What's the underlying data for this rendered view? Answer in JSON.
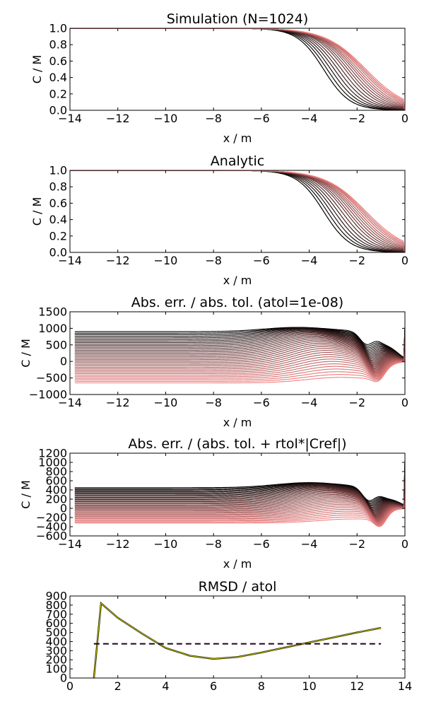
{
  "chart_data": [
    {
      "type": "line",
      "title": "Simulation (N=1024)",
      "xlabel": "x / m",
      "ylabel": "C / M",
      "xlim": [
        -14,
        0
      ],
      "ylim": [
        0,
        1
      ],
      "xticks": [
        -14,
        -12,
        -10,
        -8,
        -6,
        -4,
        -2,
        0
      ],
      "xtick_labels": [
        "−14",
        "−12",
        "−10",
        "−8",
        "−6",
        "−4",
        "−2",
        "0"
      ],
      "yticks": [
        0,
        0.2,
        0.4,
        0.6,
        0.8,
        1.0
      ],
      "ytick_labels": [
        "0.0",
        "0.2",
        "0.4",
        "0.6",
        "0.8",
        "1.0"
      ],
      "curve_family": {
        "count": 16,
        "description_of_curves": "concentration profiles C(x) at successive times, colour ramp from dark to salmon",
        "x_at_half_concentration": [
          -3.4,
          -3.25,
          -3.1,
          -2.95,
          -2.8,
          -2.65,
          -2.5,
          -2.38,
          -2.26,
          -2.15,
          -2.05,
          -1.95,
          -1.85,
          -1.77,
          -1.7,
          -1.63
        ],
        "value_at_x_-8": 1.0,
        "value_at_x_0": 0.0
      },
      "color_start": "#000000",
      "color_end": "#f08080",
      "grid": false
    },
    {
      "type": "line",
      "title": "Analytic",
      "xlabel": "x / m",
      "ylabel": "C / M",
      "xlim": [
        -14,
        0
      ],
      "ylim": [
        0,
        1
      ],
      "xticks": [
        -14,
        -12,
        -10,
        -8,
        -6,
        -4,
        -2,
        0
      ],
      "xtick_labels": [
        "−14",
        "−12",
        "−10",
        "−8",
        "−6",
        "−4",
        "−2",
        "0"
      ],
      "yticks": [
        0,
        0.2,
        0.4,
        0.6,
        0.8,
        1.0
      ],
      "ytick_labels": [
        "0.0",
        "0.2",
        "0.4",
        "0.6",
        "0.8",
        "1.0"
      ],
      "curve_family": {
        "count": 16,
        "x_at_half_concentration": [
          -3.4,
          -3.25,
          -3.1,
          -2.95,
          -2.8,
          -2.65,
          -2.5,
          -2.38,
          -2.26,
          -2.15,
          -2.05,
          -1.95,
          -1.85,
          -1.77,
          -1.7,
          -1.63
        ],
        "value_at_x_-8": 1.0,
        "value_at_x_0": 0.0
      },
      "color_start": "#000000",
      "color_end": "#f08080",
      "grid": false
    },
    {
      "type": "line",
      "title": "Abs. err. / abs. tol. (atol=1e-08)",
      "xlabel": "x / m",
      "ylabel": "C / M",
      "xlim": [
        -14,
        0
      ],
      "ylim": [
        -1000,
        1500
      ],
      "xticks": [
        -14,
        -12,
        -10,
        -8,
        -6,
        -4,
        -2,
        0
      ],
      "xtick_labels": [
        "−14",
        "−12",
        "−10",
        "−8",
        "−6",
        "−4",
        "−2",
        "0"
      ],
      "yticks": [
        -1000,
        -500,
        0,
        500,
        1000,
        1500
      ],
      "ytick_labels": [
        "−1000",
        "−500",
        "0",
        "500",
        "1000",
        "1500"
      ],
      "curve_family": {
        "count": 34,
        "plateau_value_first": 900,
        "plateau_value_last": -650,
        "peak_near_x": -4.5,
        "peak_value": 1030,
        "min_near_x": -1.1,
        "min_value": -570,
        "bump_near_x": -0.5,
        "bump_value": 220,
        "spike_at_x_0": 1050
      },
      "color_start": "#000000",
      "color_end": "#f08080",
      "grid": false
    },
    {
      "type": "line",
      "title": "Abs. err. / (abs. tol. + rtol*|Cref|)",
      "xlabel": "x / m",
      "ylabel": "C / M",
      "xlim": [
        -14,
        0
      ],
      "ylim": [
        -600,
        1200
      ],
      "xticks": [
        -14,
        -12,
        -10,
        -8,
        -6,
        -4,
        -2,
        0
      ],
      "xtick_labels": [
        "−14",
        "−12",
        "−10",
        "−8",
        "−6",
        "−4",
        "−2",
        "0"
      ],
      "yticks": [
        -600,
        -400,
        -200,
        0,
        200,
        400,
        600,
        800,
        1000,
        1200
      ],
      "ytick_labels": [
        "−600",
        "−400",
        "−200",
        "0",
        "200",
        "400",
        "600",
        "800",
        "1000",
        "1200"
      ],
      "curve_family": {
        "count": 34,
        "plateau_value_first": 450,
        "plateau_value_last": -320,
        "peak_near_x": -4.0,
        "peak_value": 560,
        "min_near_x": -1.0,
        "min_value": -540,
        "bump_near_x": -0.4,
        "bump_value": 110,
        "spike_at_x_0": 1050
      },
      "color_start": "#000000",
      "color_end": "#f08080",
      "grid": false
    },
    {
      "type": "line",
      "title": "RMSD / atol",
      "xlabel": "",
      "ylabel": "",
      "xlim": [
        0,
        14
      ],
      "ylim": [
        0,
        900
      ],
      "xticks": [
        0,
        2,
        4,
        6,
        8,
        10,
        12,
        14
      ],
      "xtick_labels": [
        "0",
        "2",
        "4",
        "6",
        "8",
        "10",
        "12",
        "14"
      ],
      "yticks": [
        0,
        100,
        200,
        300,
        400,
        500,
        600,
        700,
        800,
        900
      ],
      "ytick_labels": [
        "0",
        "100",
        "200",
        "300",
        "400",
        "500",
        "600",
        "700",
        "800",
        "900"
      ],
      "series": [
        {
          "x": [
            1.0,
            1.3,
            2.0,
            3.0,
            4.0,
            5.0,
            6.0,
            7.0,
            8.0,
            9.0,
            10.0,
            11.0,
            12.0,
            13.0
          ],
          "values": [
            0,
            820,
            660,
            490,
            330,
            245,
            210,
            230,
            280,
            335,
            390,
            445,
            500,
            550
          ],
          "color": "#808000"
        },
        {
          "x": [
            1.0,
            13.0
          ],
          "values": [
            375,
            375
          ],
          "color": "#200020",
          "style": "dashed"
        }
      ],
      "grid": false
    }
  ]
}
